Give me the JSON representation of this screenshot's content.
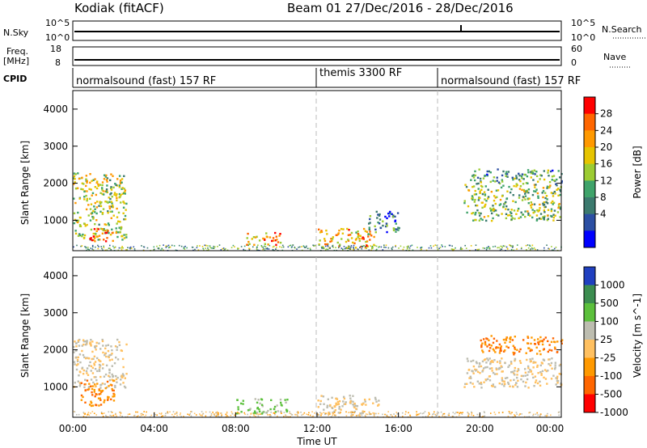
{
  "header": {
    "station": "Kodiak (fitACF)",
    "beam_date": "Beam 01  27/Dec/2016 - 28/Dec/2016"
  },
  "top_panels": {
    "nsky_label": "N.Sky",
    "nsky_ticks": [
      "10^5",
      "10^0"
    ],
    "nsearch_label": "N.Search",
    "nsearch_ticks": [
      "10^5",
      "10^0"
    ],
    "freq_label": "Freq.",
    "freq_unit": "[MHz]",
    "freq_ticks": [
      "18",
      "8"
    ],
    "nave_label": "Nave",
    "nave_ticks": [
      "60",
      "0"
    ],
    "cpid_label": "CPID",
    "cpid_segments": [
      {
        "label": "normalsound (fast) 157 RF",
        "start": 0
      },
      {
        "label": "themis 3300 RF",
        "start": 12
      },
      {
        "label": "normalsound (fast) 157 RF",
        "start": 18
      }
    ]
  },
  "chart_data": [
    {
      "type": "heatmap",
      "name": "power",
      "ylabel": "Slant Range [km]",
      "yticks": [
        "4000",
        "3000",
        "2000",
        "1000"
      ],
      "ytick_values": [
        4000,
        3000,
        2000,
        1000
      ],
      "ylim": [
        180,
        4500
      ],
      "xlim": [
        0,
        24
      ],
      "colorbar_label": "Power [dB]",
      "colorbar_ticks": [
        "28",
        "24",
        "20",
        "16",
        "12",
        "8",
        "4"
      ],
      "colorbar_colors": [
        "#ff0000",
        "#ff6600",
        "#ff9900",
        "#e6c400",
        "#9ccc33",
        "#3fa36a",
        "#3c7a6e",
        "#2c4fa3",
        "#0000ff"
      ],
      "regions": [
        {
          "t": [
            0.0,
            2.6
          ],
          "r": [
            500,
            2300
          ],
          "level": 18
        },
        {
          "t": [
            0.8,
            2.0
          ],
          "r": [
            450,
            800
          ],
          "level": 28
        },
        {
          "t": [
            8.5,
            10.2
          ],
          "r": [
            350,
            700
          ],
          "level": 24
        },
        {
          "t": [
            12.0,
            14.8
          ],
          "r": [
            250,
            800
          ],
          "level": 22
        },
        {
          "t": [
            14.5,
            16.0
          ],
          "r": [
            700,
            1300
          ],
          "level": 10
        },
        {
          "t": [
            19.2,
            24.0
          ],
          "r": [
            1000,
            2000
          ],
          "level": 16
        },
        {
          "t": [
            19.5,
            24.0
          ],
          "r": [
            2000,
            2400
          ],
          "level": 12
        }
      ]
    },
    {
      "type": "heatmap",
      "name": "velocity",
      "ylabel": "Slant Range [km]",
      "yticks": [
        "4000",
        "3000",
        "2000",
        "1000"
      ],
      "ytick_values": [
        4000,
        3000,
        2000,
        1000
      ],
      "ylim": [
        180,
        4500
      ],
      "xlim": [
        0,
        24
      ],
      "xlabel": "Time UT",
      "xticks": [
        "00:00",
        "04:00",
        "08:00",
        "12:00",
        "16:00",
        "20:00",
        "00:00"
      ],
      "xtick_values": [
        0,
        4,
        8,
        12,
        16,
        20,
        24
      ],
      "colorbar_label": "Velocity [m s^-1]",
      "colorbar_ticks": [
        "1000",
        "500",
        "100",
        "25",
        "-25",
        "-100",
        "-500",
        "-1000"
      ],
      "colorbar_colors": [
        "#2040c0",
        "#3c8d50",
        "#5cc03c",
        "#bdbdb0",
        "#ffc060",
        "#ff9900",
        "#ff6600",
        "#ff0000"
      ],
      "regions": [
        {
          "t": [
            0.0,
            2.6
          ],
          "r": [
            1000,
            2300
          ],
          "level": 0
        },
        {
          "t": [
            0.3,
            2.0
          ],
          "r": [
            500,
            1200
          ],
          "level": -300
        },
        {
          "t": [
            8.0,
            10.5
          ],
          "r": [
            300,
            700
          ],
          "level": 80
        },
        {
          "t": [
            12.0,
            15.0
          ],
          "r": [
            250,
            800
          ],
          "level": 0
        },
        {
          "t": [
            19.2,
            24.0
          ],
          "r": [
            1000,
            1800
          ],
          "level": 0
        },
        {
          "t": [
            20.0,
            24.0
          ],
          "r": [
            1900,
            2400
          ],
          "level": -300
        }
      ]
    }
  ]
}
